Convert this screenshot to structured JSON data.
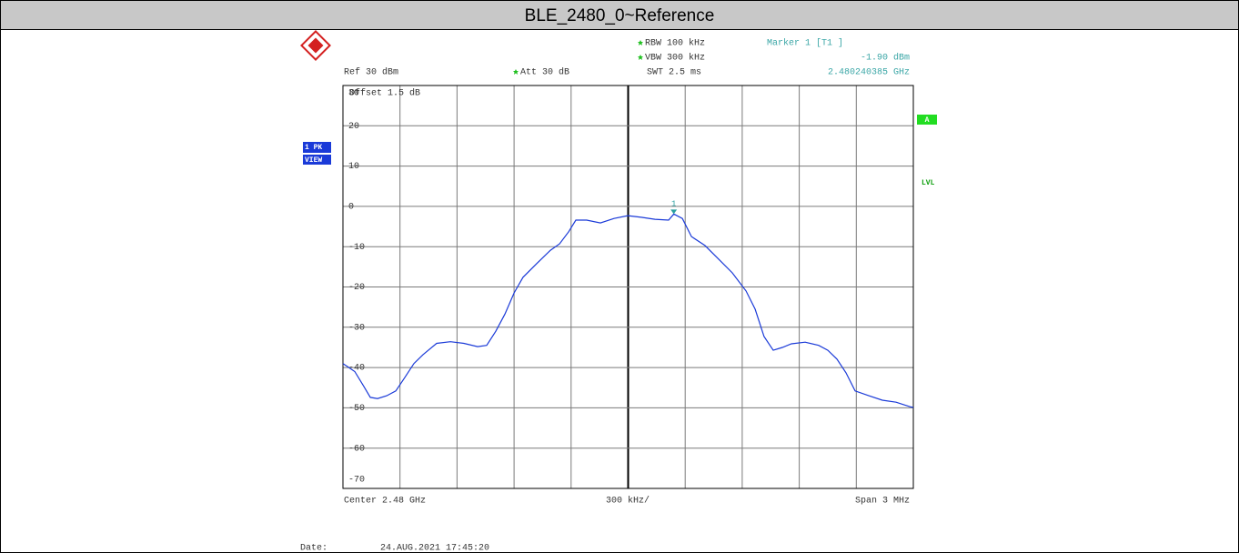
{
  "chart_data": {
    "type": "line",
    "title": "BLE_2480_0~Reference",
    "x": [
      2.4785,
      2.478562,
      2.47861,
      2.478644,
      2.478682,
      2.47873,
      2.478778,
      2.478825,
      2.478873,
      2.478921,
      2.478993,
      2.479065,
      2.479136,
      2.479208,
      2.479256,
      2.479304,
      2.479352,
      2.4794,
      2.479447,
      2.479519,
      2.479591,
      2.479639,
      2.479687,
      2.479725,
      2.479782,
      2.479854,
      2.479926,
      2.479998,
      2.480069,
      2.480141,
      2.480213,
      2.48024,
      2.480285,
      2.480333,
      2.480404,
      2.480476,
      2.480548,
      2.48062,
      2.480668,
      2.480715,
      2.480763,
      2.480811,
      2.480859,
      2.480931,
      2.481002,
      2.48105,
      2.481098,
      2.481146,
      2.481194,
      2.481266,
      2.481337,
      2.481409,
      2.481481,
      2.4815
    ],
    "series": [
      {
        "name": "1 PK",
        "color": "#1a3ad8",
        "values": [
          -39,
          -41,
          -44.7,
          -47.4,
          -47.7,
          -47,
          -45.8,
          -42.5,
          -39,
          -36.8,
          -34,
          -33.6,
          -34,
          -34.8,
          -34.5,
          -31,
          -26.7,
          -21.5,
          -17.6,
          -14.2,
          -10.9,
          -9.3,
          -6.3,
          -3.4,
          -3.4,
          -4.1,
          -3,
          -2.3,
          -2.7,
          -3.2,
          -3.4,
          -1.9,
          -3,
          -7.5,
          -9.7,
          -13.1,
          -16.5,
          -21,
          -25.5,
          -32.3,
          -35.7,
          -35,
          -34.1,
          -33.7,
          -34.5,
          -35.7,
          -37.9,
          -41.3,
          -45.8,
          -47,
          -48.1,
          -48.6,
          -49.7,
          -49.9
        ]
      }
    ],
    "xlim": [
      2.4785,
      2.4815
    ],
    "xticks": [
      2.4785,
      2.4788,
      2.4791,
      2.4794,
      2.4797,
      2.48,
      2.4803,
      2.4806,
      2.4809,
      2.4812,
      2.4815
    ],
    "ylim": [
      -70,
      30
    ],
    "yticks": [
      30,
      20,
      10,
      0,
      -10,
      -20,
      -30,
      -40,
      -50,
      -60,
      -70
    ],
    "grid": true,
    "marker": {
      "label": "1",
      "point": 31,
      "color": "#2aa0a0"
    },
    "header": {
      "ref": "Ref   30 dBm",
      "att": "Att   30 dB",
      "rbw": "RBW  100 kHz",
      "vbw": "VBW  300 kHz",
      "swt": "SWT  2.5 ms",
      "marker_title": "Marker 1 [T1 ]",
      "marker_level": "-1.90 dBm",
      "marker_freq": "2.480240385 GHz",
      "offset": "Offset   1.5 dB"
    },
    "side": {
      "trace": "1 PK",
      "view": "VIEW",
      "a": "A",
      "lvl": "LVL"
    },
    "footer": {
      "center": "Center 2.48 GHz",
      "div": "300 kHz/",
      "span": "Span 3 MHz",
      "date_label": "Date:",
      "date": "24.AUG.2021  17:45:20"
    }
  }
}
